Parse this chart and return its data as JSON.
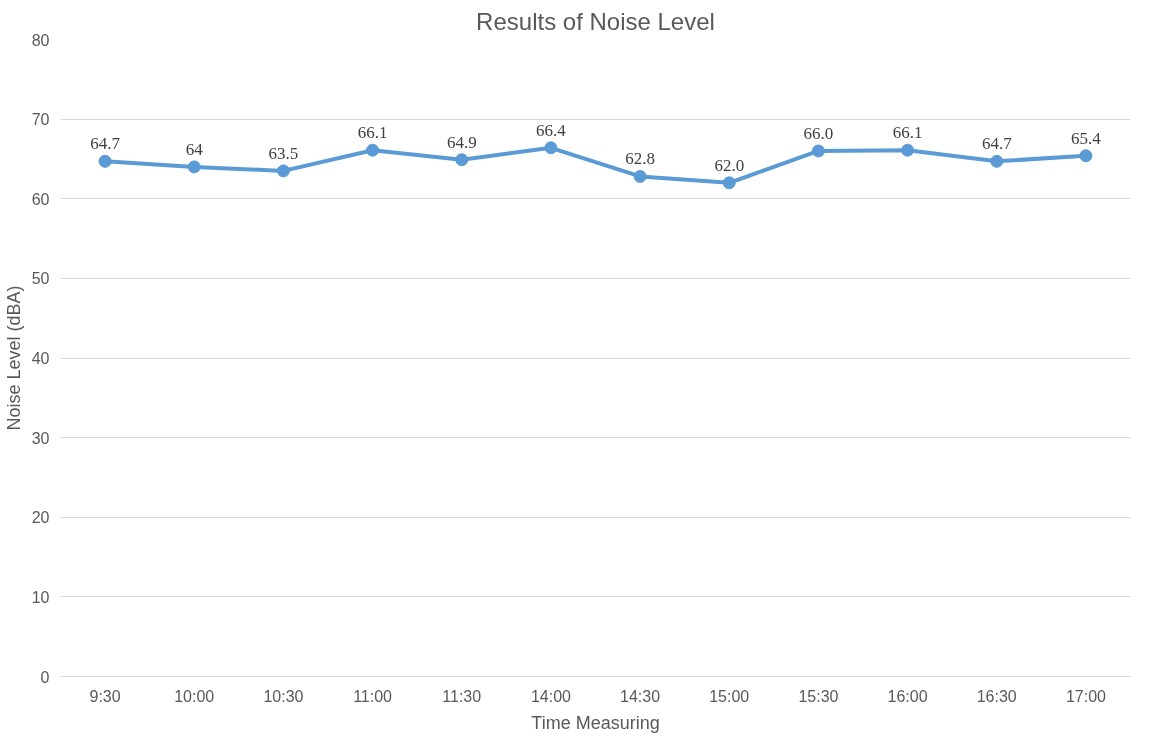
{
  "chart_data": {
    "type": "line",
    "title": "Results of Noise Level",
    "xlabel": "Time Measuring",
    "ylabel": "Noise Level (dBA)",
    "categories": [
      "9:30",
      "10:00",
      "10:30",
      "11:00",
      "11:30",
      "14:00",
      "14:30",
      "15:00",
      "15:30",
      "16:00",
      "16:30",
      "17:00"
    ],
    "series": [
      {
        "color": "#5b9bd5",
        "values": [
          64.7,
          64,
          63.5,
          66.1,
          64.9,
          66.4,
          62.8,
          62.0,
          66.0,
          66.1,
          64.7,
          65.4
        ],
        "value_labels": [
          "64.7",
          "64",
          "63.5",
          "66.1",
          "64.9",
          "66.4",
          "62.8",
          "62.0",
          "66.0",
          "66.1",
          "64.7",
          "65.4"
        ]
      }
    ],
    "ylim": [
      0,
      80
    ],
    "yticks": [
      0,
      10,
      20,
      30,
      40,
      50,
      60,
      70,
      80
    ],
    "grid": "y",
    "marker": "circle",
    "line_style": "solid"
  }
}
